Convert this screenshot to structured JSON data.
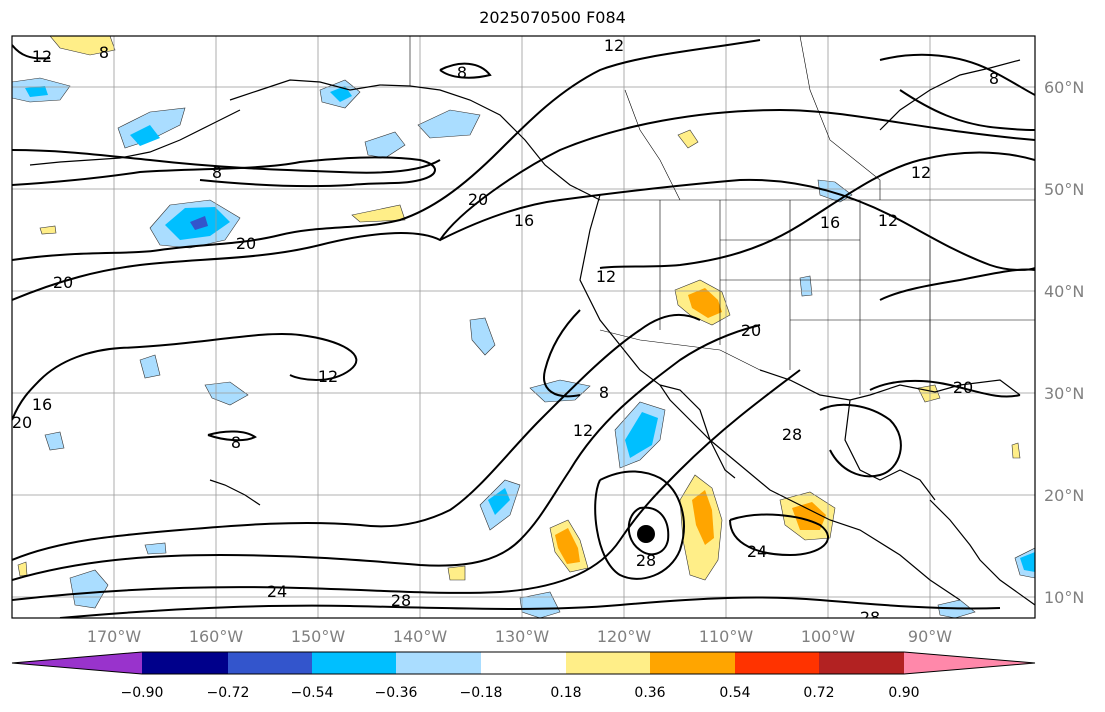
{
  "title": "2025070500 F084",
  "lat_labels": [
    "60°N",
    "50°N",
    "40°N",
    "30°N",
    "20°N",
    "10°N"
  ],
  "lon_labels": [
    "170°W",
    "160°W",
    "150°W",
    "140°W",
    "130°W",
    "120°W",
    "110°W",
    "100°W",
    "90°W"
  ],
  "colorbar": {
    "colors": [
      "#9933cc",
      "#00008b",
      "#3355cc",
      "#00bfff",
      "#aaddff",
      "#ffffff",
      "#ffee88",
      "#ffa500",
      "#ff3300",
      "#b22222",
      "#ff88aa"
    ],
    "ticks": [
      "−0.90",
      "−0.72",
      "−0.54",
      "−0.36",
      "−0.18",
      "0.18",
      "0.36",
      "0.54",
      "0.72",
      "0.90"
    ]
  },
  "contour_labels": [
    "12",
    "8",
    "8",
    "12",
    "8",
    "20",
    "20",
    "16",
    "12",
    "16",
    "12",
    "12",
    "20",
    "12",
    "8",
    "20",
    "16",
    "12",
    "8",
    "28",
    "24",
    "28",
    "24",
    "28",
    "28",
    "20",
    "20"
  ]
}
